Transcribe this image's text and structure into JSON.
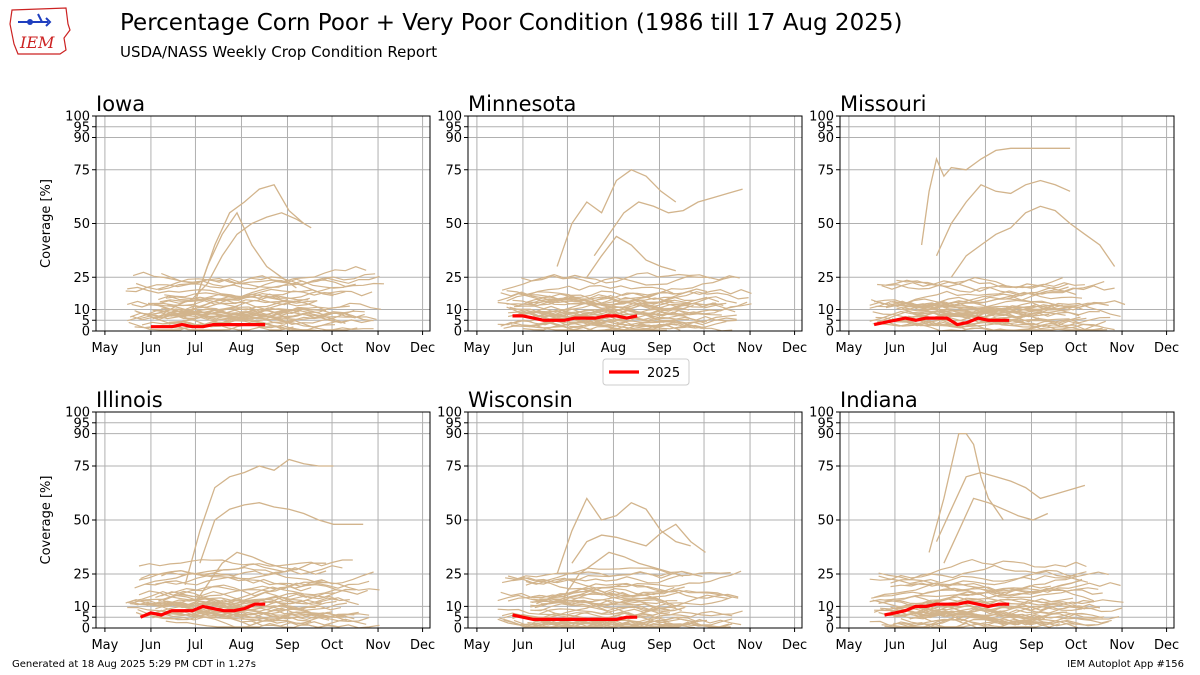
{
  "header": {
    "title": "Percentage Corn Poor + Very Poor Condition (1986 till 17 Aug 2025)",
    "subtitle": "USDA/NASS Weekly Crop Condition Report",
    "logo_text": "IEM"
  },
  "footer": {
    "generated": "Generated at 18 Aug 2025 5:29 PM CDT in 1.27s",
    "app": "IEM Autoplot App #156"
  },
  "colors": {
    "history": "#d2b48c",
    "current": "#ff0000",
    "grid": "#b0b0b0",
    "logo_red": "#cc2222",
    "logo_blue": "#1f3fbf"
  },
  "chart_data": {
    "type": "line",
    "ylabel": "Coverage [%]",
    "ylim": [
      0,
      100
    ],
    "yticks": [
      0,
      5,
      10,
      25,
      50,
      75,
      90,
      95,
      100
    ],
    "xticks": [
      "May",
      "Jun",
      "Jul",
      "Aug",
      "Sep",
      "Oct",
      "Nov",
      "Dec"
    ],
    "x_axis_note": "x values are day-of-year",
    "xlim": [
      115,
      340
    ],
    "xtick_doy": [
      121,
      152,
      182,
      213,
      244,
      274,
      305,
      335
    ],
    "legend": {
      "label": "2025",
      "placement": "center between panel rows"
    },
    "panels": [
      {
        "name": "Iowa",
        "current_2025": {
          "x": [
            152,
            159,
            166,
            173,
            180,
            187,
            194,
            201,
            208,
            215,
            222,
            229
          ],
          "y": [
            2,
            2,
            2,
            3,
            2,
            2,
            3,
            3,
            3,
            3,
            3,
            3
          ]
        },
        "history_highlights": [
          {
            "x": [
              160,
              170,
              180,
              190,
              200,
              210,
              220,
              230,
              240,
              250,
              260
            ],
            "y": [
              8,
              12,
              15,
              22,
              35,
              45,
              50,
              53,
              55,
              52,
              48
            ]
          },
          {
            "x": [
              185,
              195,
              205,
              215,
              225,
              235,
              245,
              255
            ],
            "y": [
              20,
              40,
              55,
              60,
              66,
              68,
              56,
              50
            ]
          },
          {
            "x": [
              180,
              190,
              200,
              210,
              220,
              230,
              240,
              250
            ],
            "y": [
              10,
              30,
              45,
              55,
              40,
              30,
              25,
              20
            ]
          }
        ]
      },
      {
        "name": "Minnesota",
        "current_2025": {
          "x": [
            145,
            152,
            159,
            166,
            173,
            180,
            187,
            194,
            201,
            208,
            215,
            222,
            229
          ],
          "y": [
            7,
            7,
            6,
            5,
            5,
            5,
            6,
            6,
            6,
            7,
            7,
            6,
            7
          ]
        },
        "history_highlights": [
          {
            "x": [
              175,
              185,
              195,
              205,
              215,
              225,
              235,
              245,
              255
            ],
            "y": [
              30,
              50,
              60,
              55,
              70,
              75,
              72,
              65,
              60
            ]
          },
          {
            "x": [
              200,
              210,
              220,
              230,
              240,
              250,
              260,
              270,
              280,
              290,
              300
            ],
            "y": [
              35,
              45,
              55,
              60,
              58,
              55,
              56,
              60,
              62,
              64,
              66
            ]
          },
          {
            "x": [
              195,
              205,
              215,
              225,
              235,
              245,
              255
            ],
            "y": [
              25,
              35,
              44,
              40,
              33,
              30,
              28
            ]
          }
        ]
      },
      {
        "name": "Missouri",
        "current_2025": {
          "x": [
            138,
            145,
            152,
            159,
            166,
            173,
            180,
            187,
            194,
            201,
            208,
            215,
            222,
            229
          ],
          "y": [
            3,
            4,
            5,
            6,
            5,
            6,
            6,
            6,
            3,
            4,
            6,
            5,
            5,
            5
          ]
        },
        "history_highlights": [
          {
            "x": [
              170,
              175,
              180,
              185,
              190,
              200,
              210,
              220,
              230,
              240,
              250,
              260,
              270
            ],
            "y": [
              40,
              65,
              80,
              72,
              76,
              75,
              80,
              84,
              85,
              85,
              85,
              85,
              85
            ]
          },
          {
            "x": [
              180,
              190,
              200,
              210,
              220,
              230,
              240,
              250,
              260,
              270
            ],
            "y": [
              35,
              50,
              60,
              68,
              65,
              64,
              68,
              70,
              68,
              65
            ]
          },
          {
            "x": [
              190,
              200,
              210,
              220,
              230,
              240,
              250,
              260,
              270,
              280,
              290,
              300
            ],
            "y": [
              25,
              35,
              40,
              45,
              48,
              55,
              58,
              56,
              50,
              45,
              40,
              30
            ]
          }
        ]
      },
      {
        "name": "Illinois",
        "current_2025": {
          "x": [
            145,
            152,
            159,
            166,
            173,
            180,
            187,
            194,
            201,
            208,
            215,
            222,
            229
          ],
          "y": [
            5,
            7,
            6,
            8,
            8,
            8,
            10,
            9,
            8,
            8,
            9,
            11,
            11
          ]
        },
        "history_highlights": [
          {
            "x": [
              175,
              185,
              195,
              205,
              215,
              225,
              235,
              245,
              255,
              265,
              275
            ],
            "y": [
              20,
              45,
              65,
              70,
              72,
              75,
              73,
              78,
              76,
              75,
              75
            ]
          },
          {
            "x": [
              185,
              195,
              205,
              215,
              225,
              235,
              245,
              255,
              265,
              275,
              285,
              295
            ],
            "y": [
              30,
              50,
              55,
              57,
              58,
              56,
              55,
              53,
              50,
              48,
              48,
              48
            ]
          },
          {
            "x": [
              180,
              190,
              200,
              210,
              220,
              230,
              240,
              250,
              260,
              270
            ],
            "y": [
              10,
              20,
              30,
              35,
              33,
              30,
              28,
              27,
              30,
              30
            ]
          }
        ]
      },
      {
        "name": "Wisconsin",
        "current_2025": {
          "x": [
            145,
            152,
            159,
            166,
            173,
            180,
            187,
            194,
            201,
            208,
            215,
            222,
            229
          ],
          "y": [
            6,
            5,
            4,
            4,
            4,
            4,
            4,
            4,
            4,
            4,
            4,
            5,
            5
          ]
        },
        "history_highlights": [
          {
            "x": [
              175,
              185,
              195,
              205,
              215,
              225,
              235,
              245,
              255,
              265
            ],
            "y": [
              25,
              45,
              60,
              50,
              52,
              58,
              55,
              45,
              40,
              38
            ]
          },
          {
            "x": [
              185,
              195,
              205,
              215,
              225,
              235,
              245,
              255,
              265,
              275
            ],
            "y": [
              30,
              40,
              43,
              42,
              40,
              38,
              44,
              48,
              40,
              35
            ]
          },
          {
            "x": [
              180,
              190,
              200,
              210,
              220,
              230,
              240,
              250,
              260
            ],
            "y": [
              15,
              25,
              30,
              35,
              33,
              30,
              28,
              26,
              24
            ]
          }
        ]
      },
      {
        "name": "Indiana",
        "current_2025": {
          "x": [
            145,
            152,
            159,
            166,
            173,
            180,
            187,
            194,
            201,
            208,
            215,
            222,
            229
          ],
          "y": [
            6,
            7,
            8,
            10,
            10,
            11,
            11,
            11,
            12,
            11,
            10,
            11,
            11
          ]
        },
        "history_highlights": [
          {
            "x": [
              175,
              185,
              190,
              195,
              200,
              205,
              210,
              215,
              220,
              225
            ],
            "y": [
              35,
              60,
              75,
              90,
              90,
              85,
              70,
              60,
              55,
              50
            ]
          },
          {
            "x": [
              180,
              190,
              200,
              210,
              220,
              230,
              240,
              250,
              260,
              270,
              280
            ],
            "y": [
              40,
              55,
              70,
              72,
              70,
              68,
              65,
              60,
              62,
              64,
              66
            ]
          },
          {
            "x": [
              185,
              195,
              205,
              215,
              225,
              235,
              245,
              255
            ],
            "y": [
              30,
              45,
              60,
              58,
              55,
              52,
              50,
              53
            ]
          }
        ]
      }
    ]
  }
}
